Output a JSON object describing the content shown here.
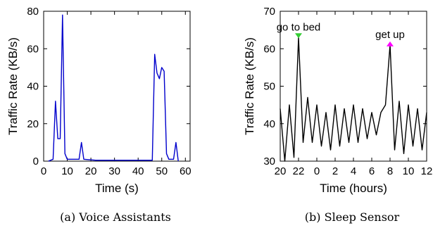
{
  "chart_data": [
    {
      "type": "line",
      "caption": "(a) Voice Assistants",
      "xlabel": "Time (s)",
      "ylabel": "Traffic Rate (KB/s)",
      "xlim": [
        0,
        62
      ],
      "ylim": [
        0,
        80
      ],
      "xticks": [
        0,
        10,
        20,
        30,
        40,
        50,
        60
      ],
      "yticks": [
        0,
        20,
        40,
        60,
        80
      ],
      "grid": false,
      "series": [
        {
          "color": "#0000cc",
          "x": [
            2,
            4,
            5,
            6,
            7,
            8,
            9,
            10,
            15,
            16,
            17,
            22,
            30,
            46,
            47,
            48,
            49,
            50,
            51,
            52,
            53,
            55,
            56,
            57
          ],
          "y": [
            0,
            1,
            32,
            12,
            12,
            78,
            4,
            1,
            1,
            10,
            1,
            0.5,
            0.5,
            0.5,
            57,
            47,
            44,
            50,
            48,
            4,
            1,
            1,
            10,
            0
          ]
        }
      ]
    },
    {
      "type": "line",
      "caption": "(b) Sleep Sensor",
      "xlabel": "Time (hours)",
      "ylabel": "Traffic Rate (KB/s)",
      "xlim": [
        20,
        36
      ],
      "ylim": [
        30,
        70
      ],
      "xticks": [
        20,
        22,
        24,
        26,
        28,
        30,
        32,
        34,
        36
      ],
      "xticklabels": [
        "20",
        "22",
        "0",
        "2",
        "4",
        "6",
        "8",
        "10",
        "12"
      ],
      "yticks": [
        30,
        40,
        50,
        60,
        70
      ],
      "grid": false,
      "series": [
        {
          "color": "#000000",
          "x": [
            20.0,
            20.5,
            21.0,
            21.5,
            22.0,
            22.5,
            23.0,
            23.5,
            24.0,
            24.5,
            25.0,
            25.5,
            26.0,
            26.5,
            27.0,
            27.5,
            28.0,
            28.5,
            29.0,
            29.5,
            30.0,
            30.5,
            31.0,
            31.5,
            32.0,
            32.5,
            33.0,
            33.5,
            34.0,
            34.5,
            35.0,
            35.5,
            36.0
          ],
          "y": [
            44,
            30,
            45,
            31,
            63,
            35,
            47,
            35,
            45,
            34,
            43,
            33,
            45,
            34,
            44,
            35,
            45,
            35,
            44,
            36,
            43,
            37,
            43,
            45,
            61,
            33,
            46,
            32,
            45,
            34,
            44,
            33,
            43
          ]
        }
      ],
      "annotations": [
        {
          "text": "go to bed",
          "x": 22,
          "y": 63,
          "color": "#33cc33"
        },
        {
          "text": "get up",
          "x": 32,
          "y": 61,
          "color": "#ff00ff"
        }
      ]
    }
  ]
}
